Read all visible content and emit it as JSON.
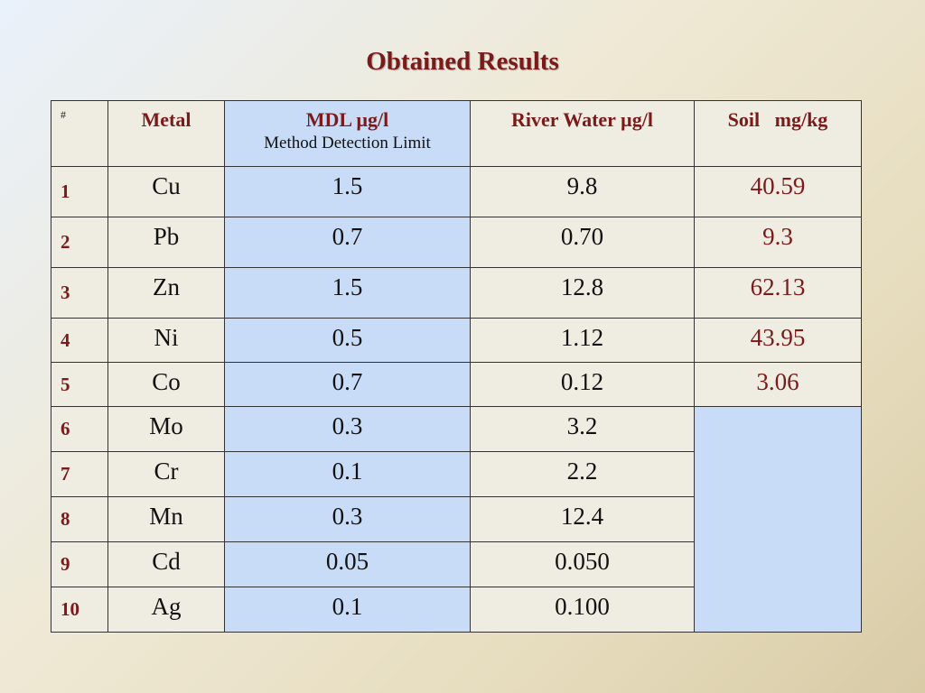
{
  "title": "Obtained Results",
  "table": {
    "headers": {
      "num": "#",
      "metal": "Metal",
      "mdl": "MDL µg/l",
      "mdl_sub": "Method Detection Limit",
      "river": "River Water µg/l",
      "soil": "Soil   mg/kg"
    },
    "rows": [
      {
        "num": "1",
        "metal": "Cu",
        "mdl": "1.5",
        "river": "9.8",
        "soil": "40.59"
      },
      {
        "num": "2",
        "metal": "Pb",
        "mdl": "0.7",
        "river": "0.70",
        "soil": "9.3"
      },
      {
        "num": "3",
        "metal": "Zn",
        "mdl": "1.5",
        "river": "12.8",
        "soil": "62.13"
      },
      {
        "num": "4",
        "metal": "Ni",
        "mdl": "0.5",
        "river": "1.12",
        "soil": "43.95"
      },
      {
        "num": "5",
        "metal": "Co",
        "mdl": "0.7",
        "river": "0.12",
        "soil": "3.06"
      },
      {
        "num": "6",
        "metal": "Mo",
        "mdl": "0.3",
        "river": "3.2"
      },
      {
        "num": "7",
        "metal": "Cr",
        "mdl": "0.1",
        "river": "2.2"
      },
      {
        "num": "8",
        "metal": "Mn",
        "mdl": "0.3",
        "river": "12.4"
      },
      {
        "num": "9",
        "metal": "Cd",
        "mdl": "0.05",
        "river": "0.050"
      },
      {
        "num": "10",
        "metal": "Ag",
        "mdl": "0.1",
        "river": "0.100"
      }
    ]
  },
  "colors": {
    "accent": "#7a1a1a",
    "mdl_column": "#c9dcf7",
    "cell_background": "#efece2"
  }
}
